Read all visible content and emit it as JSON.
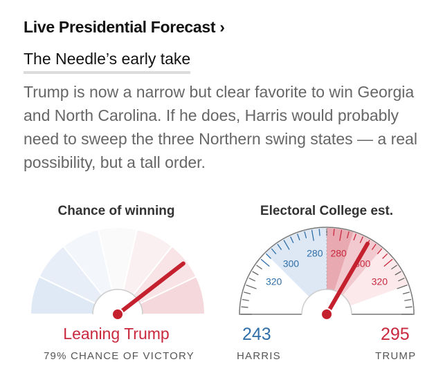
{
  "header": {
    "title": "Live Presidential Forecast",
    "chevron": "›"
  },
  "subhead": "The Needle’s early take",
  "summary": "Trump is now a narrow but clear favorite to win Georgia and North Carolina. If he does, Harris would probably need to sweep the three Northern swing states — a real possibility, but a tall order.",
  "chance_gauge": {
    "title": "Chance of winning",
    "verdict": "Leaning Trump",
    "caption": "79% CHANCE OF VICTORY",
    "trump_probability": 0.79
  },
  "ev_gauge": {
    "title": "Electoral College est.",
    "tick_labels_left": [
      "320",
      "300",
      "280"
    ],
    "tick_labels_right": [
      "280",
      "300",
      "320"
    ],
    "harris_value": "243",
    "trump_value": "295",
    "harris_label": "HARRIS",
    "trump_label": "TRUMP",
    "needle_trump_ev": 295
  },
  "colors": {
    "dem": "#2f6ea8",
    "rep": "#c9283e",
    "needle": "#c4202e"
  }
}
